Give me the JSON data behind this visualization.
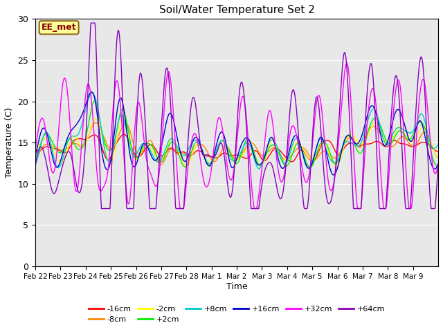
{
  "title": "Soil/Water Temperature Set 2",
  "xlabel": "Time",
  "ylabel": "Temperature (C)",
  "ylim": [
    0,
    30
  ],
  "yticks": [
    0,
    5,
    10,
    15,
    20,
    25,
    30
  ],
  "fig_bg_color": "#ffffff",
  "plot_bg_color": "#e8e8e8",
  "annotation_text": "EE_met",
  "annotation_bg": "#ffff99",
  "annotation_border": "#8b6914",
  "annotation_text_color": "#8b0000",
  "series_colors": {
    "-16cm": "#ff0000",
    "-8cm": "#ff8800",
    "-2cm": "#ffff00",
    "+2cm": "#00ee00",
    "+8cm": "#00cccc",
    "+16cm": "#0000cc",
    "+32cm": "#ff00ff",
    "+64cm": "#8800bb"
  },
  "x_tick_labels": [
    "Feb 22",
    "Feb 23",
    "Feb 24",
    "Feb 25",
    "Feb 26",
    "Feb 27",
    "Feb 28",
    "Mar 1",
    "Mar 2",
    "Mar 3",
    "Mar 4",
    "Mar 5",
    "Mar 6",
    "Mar 7",
    "Mar 8",
    "Mar 9"
  ],
  "n_points": 800
}
